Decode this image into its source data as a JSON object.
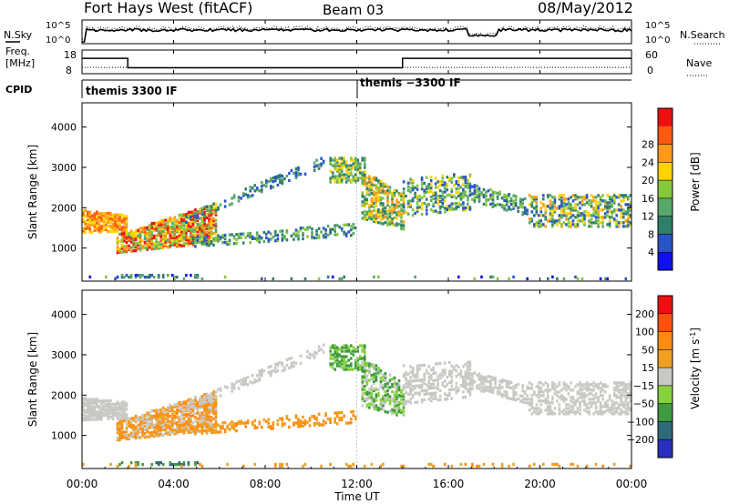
{
  "header": {
    "station": "Fort Hays West (fitACF)",
    "beam": "Beam 03",
    "date": "08/May/2012"
  },
  "summary": {
    "nsky_label": "N.Sky",
    "nsearch_label": "N.Search",
    "freq_label_line1": "Freq.",
    "freq_label_line2": "[MHz]",
    "nave_label": "Nave",
    "cpid_label": "CPID",
    "noise_ticks_left": [
      "10^5",
      "10^0"
    ],
    "noise_ticks_right": [
      "10^5",
      "10^0"
    ],
    "freq_ticks_left": [
      "18",
      "8"
    ],
    "nave_ticks_right": [
      "60",
      "0"
    ],
    "cpid_segments": [
      {
        "start_hour": 0,
        "end_hour": 12,
        "label": "themis 3300 IF"
      },
      {
        "start_hour": 12,
        "end_hour": 24,
        "label": "themis −3300 IF"
      }
    ],
    "frequency_steps": [
      {
        "start_hour": 0,
        "end_hour": 2,
        "value_mhz": 14.5
      },
      {
        "start_hour": 2,
        "end_hour": 14,
        "value_mhz": 10.5
      },
      {
        "start_hour": 14,
        "end_hour": 24,
        "value_mhz": 14.5
      }
    ],
    "nave_level": 16
  },
  "chart_data": [
    {
      "type": "heatmap",
      "parameter": "Power",
      "ylabel": "Slant Range [km]",
      "colorbar_label": "Power [dB]",
      "xlim_hours": [
        0,
        24
      ],
      "ylim": [
        180,
        4600
      ],
      "y_ticks": [
        1000,
        2000,
        3000,
        4000
      ],
      "colorbar_ticks": [
        "4",
        "8",
        "12",
        "16",
        "20",
        "24",
        "28"
      ],
      "colorscale": [
        "#1010ee",
        "#2a55c8",
        "#2f7f6a",
        "#58a868",
        "#86c83c",
        "#ffd200",
        "#ff9a18",
        "#ff5a10",
        "#ee1010"
      ]
    },
    {
      "type": "heatmap",
      "parameter": "Velocity",
      "ylabel": "Slant Range [km]",
      "colorbar_label": "Velocity [m s^-1]",
      "xlim_hours": [
        0,
        24
      ],
      "ylim": [
        180,
        4600
      ],
      "y_ticks": [
        1000,
        2000,
        3000,
        4000
      ],
      "colorbar_ticks": [
        "200",
        "100",
        "50",
        "15",
        "−15",
        "−50",
        "−100",
        "−200"
      ],
      "colorscale": [
        "#2830c0",
        "#2e6a78",
        "#3f9a40",
        "#84d23c",
        "#c8c8c4",
        "#f0a020",
        "#ff8c10",
        "#ff5010",
        "#ee1010"
      ]
    }
  ],
  "x_axis": {
    "ticks": [
      "00:00",
      "04:00",
      "08:00",
      "12:00",
      "16:00",
      "20:00",
      "00:00"
    ],
    "label": "Time UT"
  }
}
